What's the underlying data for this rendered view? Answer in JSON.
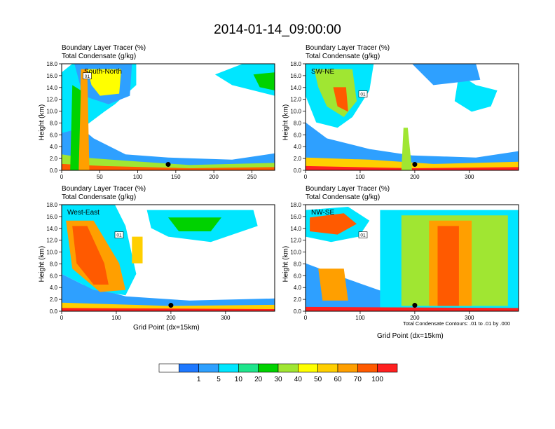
{
  "title": "2014-01-14_09:00:00",
  "footnote": "Total Condensate Contours: .01 to .01 by .000",
  "xlabel": "Grid Point (dx=15km)",
  "ylabel": "Height (km)",
  "label_line1": "Boundary Layer Tracer    (%)",
  "label_line2": "Total Condensate    (g/kg)",
  "contour_label": "01",
  "colorbar": {
    "colors": [
      "#ffffff",
      "#1e78ff",
      "#2ea0ff",
      "#00e6ff",
      "#1ee58c",
      "#00d200",
      "#a0e632",
      "#ffff00",
      "#ffcf00",
      "#ff9f00",
      "#ff5a00",
      "#ff2020"
    ],
    "labels": [
      "1",
      "5",
      "10",
      "20",
      "30",
      "40",
      "50",
      "60",
      "70",
      "100"
    ]
  },
  "chart_data": [
    {
      "type": "heatmap",
      "name": "South-North",
      "xlim": [
        0,
        280
      ],
      "xticks": [
        0,
        50,
        100,
        150,
        200,
        250
      ],
      "ylim": [
        0,
        18
      ],
      "yticks": [
        "0.0",
        "2.0",
        "4.0",
        "6.0",
        "8.0",
        "10.0",
        "12.0",
        "14.0",
        "16.0",
        "18.0"
      ],
      "marker_x": 140,
      "marker_y": 1.0,
      "show_xlabel": false
    },
    {
      "type": "heatmap",
      "name": "SW-NE",
      "xlim": [
        0,
        390
      ],
      "xticks": [
        0,
        100,
        200,
        300
      ],
      "ylim": [
        0,
        18
      ],
      "yticks": [
        "0.0",
        "2.0",
        "4.0",
        "6.0",
        "8.0",
        "10.0",
        "12.0",
        "14.0",
        "16.0",
        "18.0"
      ],
      "marker_x": 200,
      "marker_y": 1.0,
      "show_xlabel": false
    },
    {
      "type": "heatmap",
      "name": "West-East",
      "xlim": [
        0,
        390
      ],
      "xticks": [
        0,
        100,
        200,
        300
      ],
      "ylim": [
        0,
        18
      ],
      "yticks": [
        "0.0",
        "2.0",
        "4.0",
        "6.0",
        "8.0",
        "10.0",
        "12.0",
        "14.0",
        "16.0",
        "18.0"
      ],
      "marker_x": 200,
      "marker_y": 1.0,
      "show_xlabel": true
    },
    {
      "type": "heatmap",
      "name": "NW-SE",
      "xlim": [
        0,
        390
      ],
      "xticks": [
        0,
        100,
        200,
        300
      ],
      "ylim": [
        0,
        18
      ],
      "yticks": [
        "0.0",
        "2.0",
        "4.0",
        "6.0",
        "8.0",
        "10.0",
        "12.0",
        "14.0",
        "16.0",
        "18.0"
      ],
      "marker_x": 200,
      "marker_y": 1.0,
      "show_xlabel": true
    }
  ]
}
